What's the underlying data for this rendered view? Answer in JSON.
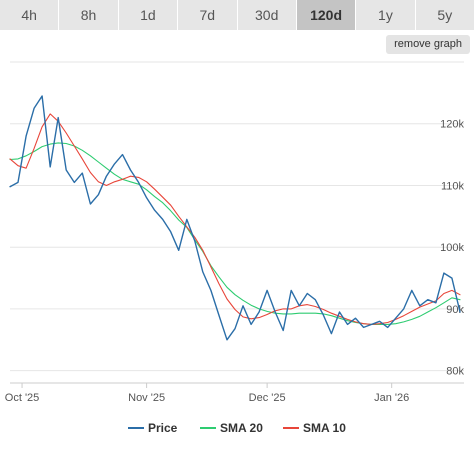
{
  "range_tabs": [
    {
      "label": "4h",
      "active": false
    },
    {
      "label": "8h",
      "active": false
    },
    {
      "label": "1d",
      "active": false
    },
    {
      "label": "7d",
      "active": false
    },
    {
      "label": "30d",
      "active": false
    },
    {
      "label": "120d",
      "active": true
    },
    {
      "label": "1y",
      "active": false
    },
    {
      "label": "5y",
      "active": false
    }
  ],
  "remove_graph_label": "remove graph",
  "chart_data": {
    "type": "line",
    "x_tick_labels": [
      "Oct '25",
      "Nov '25",
      "Dec '25",
      "Jan '26"
    ],
    "x_tick_dates": [
      "2025-10-01",
      "2025-11-01",
      "2025-12-01",
      "2026-01-01"
    ],
    "x_range": [
      "2025-09-28",
      "2026-01-19"
    ],
    "y_ticks": [
      80000,
      90000,
      100000,
      110000,
      120000
    ],
    "y_tick_labels": [
      "80k",
      "90k",
      "100k",
      "110k",
      "120k"
    ],
    "ylim": [
      78000,
      130000
    ],
    "grid": "horizontal",
    "legend_position": "bottom",
    "x": [
      "2025-09-28",
      "2025-09-30",
      "2025-10-02",
      "2025-10-04",
      "2025-10-06",
      "2025-10-08",
      "2025-10-10",
      "2025-10-12",
      "2025-10-14",
      "2025-10-16",
      "2025-10-18",
      "2025-10-20",
      "2025-10-22",
      "2025-10-24",
      "2025-10-26",
      "2025-10-28",
      "2025-10-30",
      "2025-11-01",
      "2025-11-03",
      "2025-11-05",
      "2025-11-07",
      "2025-11-09",
      "2025-11-11",
      "2025-11-13",
      "2025-11-15",
      "2025-11-17",
      "2025-11-19",
      "2025-11-21",
      "2025-11-23",
      "2025-11-25",
      "2025-11-27",
      "2025-11-29",
      "2025-12-01",
      "2025-12-03",
      "2025-12-05",
      "2025-12-07",
      "2025-12-09",
      "2025-12-11",
      "2025-12-13",
      "2025-12-15",
      "2025-12-17",
      "2025-12-19",
      "2025-12-21",
      "2025-12-23",
      "2025-12-25",
      "2025-12-27",
      "2025-12-29",
      "2025-12-31",
      "2026-01-02",
      "2026-01-04",
      "2026-01-06",
      "2026-01-08",
      "2026-01-10",
      "2026-01-12",
      "2026-01-14",
      "2026-01-16",
      "2026-01-18"
    ],
    "series": [
      {
        "name": "Price",
        "color": "#2b6ea8",
        "values": [
          109800,
          110500,
          118000,
          122500,
          124500,
          113000,
          121000,
          112500,
          110500,
          112000,
          107000,
          108500,
          111500,
          113500,
          115000,
          112500,
          110500,
          108000,
          106000,
          104500,
          102500,
          99500,
          104500,
          101000,
          96000,
          93000,
          89000,
          85000,
          86800,
          90500,
          87500,
          89500,
          93000,
          89500,
          86500,
          93000,
          90500,
          92500,
          91500,
          89000,
          86000,
          89500,
          87500,
          88500,
          87000,
          87500,
          88000,
          87000,
          88500,
          90000,
          93000,
          90500,
          91500,
          91000,
          95800,
          95000,
          89500
        ]
      },
      {
        "name": "SMA 20",
        "color": "#2ecc71",
        "values": [
          114200,
          114300,
          114800,
          115500,
          116300,
          116700,
          116900,
          116800,
          116400,
          115700,
          114800,
          113800,
          112800,
          111800,
          111000,
          110600,
          110200,
          109300,
          108200,
          107200,
          105900,
          104400,
          103200,
          101200,
          99300,
          97000,
          95200,
          93500,
          92300,
          91400,
          90600,
          90000,
          89600,
          89300,
          89200,
          89200,
          89300,
          89300,
          89300,
          89200,
          88900,
          88500,
          88100,
          87800,
          87600,
          87500,
          87500,
          87500,
          87600,
          87900,
          88300,
          88800,
          89500,
          90200,
          91000,
          91800,
          91500
        ]
      },
      {
        "name": "SMA 10",
        "color": "#e8463a",
        "values": [
          114300,
          113200,
          112800,
          116000,
          119500,
          121600,
          120400,
          118500,
          116400,
          114300,
          112100,
          110600,
          110000,
          110600,
          111000,
          111500,
          111300,
          110600,
          109400,
          108100,
          106800,
          105000,
          103300,
          101600,
          99500,
          96800,
          94100,
          91600,
          89900,
          88700,
          88400,
          88600,
          89100,
          89700,
          90000,
          90000,
          90500,
          90700,
          90400,
          89900,
          89300,
          88800,
          88300,
          87900,
          87600,
          87500,
          87600,
          87800,
          88300,
          88900,
          89600,
          90300,
          90800,
          91300,
          92500,
          93000,
          92300
        ]
      }
    ]
  }
}
